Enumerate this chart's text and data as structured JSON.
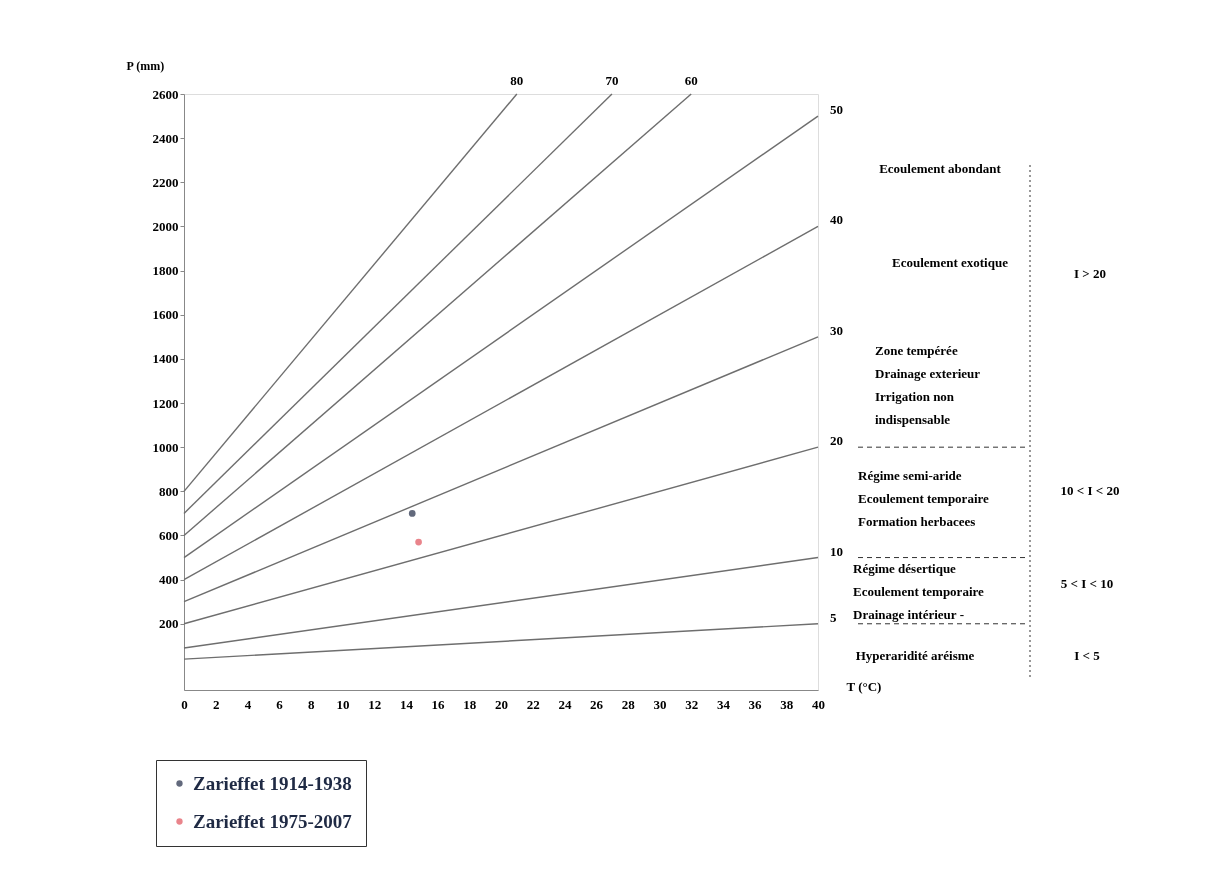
{
  "chart_data": {
    "type": "line",
    "xlabel": "T (°C)",
    "ylabel": "P (mm)",
    "xlim": [
      0,
      40
    ],
    "xticks": [
      0,
      2,
      4,
      6,
      8,
      10,
      12,
      14,
      16,
      18,
      20,
      22,
      24,
      26,
      28,
      30,
      32,
      34,
      36,
      38,
      40
    ],
    "ylim": [
      -100,
      2600
    ],
    "yticks": [
      200,
      400,
      600,
      800,
      1000,
      1200,
      1400,
      1600,
      1800,
      2000,
      2200,
      2400,
      2600
    ],
    "grid": false,
    "legend": "bottom left",
    "line_style": "solid",
    "series": [
      {
        "name": "5",
        "color": "#6e6e6e",
        "x": [
          0,
          40
        ],
        "values": [
          40,
          200
        ]
      },
      {
        "name": "10",
        "color": "#6e6e6e",
        "x": [
          0,
          40
        ],
        "values": [
          90,
          500
        ]
      },
      {
        "name": "20",
        "color": "#6e6e6e",
        "x": [
          0,
          40
        ],
        "values": [
          200,
          1000
        ]
      },
      {
        "name": "30",
        "color": "#6e6e6e",
        "x": [
          0,
          40
        ],
        "values": [
          300,
          1500
        ]
      },
      {
        "name": "40",
        "color": "#6e6e6e",
        "x": [
          0,
          40
        ],
        "values": [
          400,
          2000
        ]
      },
      {
        "name": "50",
        "color": "#6e6e6e",
        "x": [
          0,
          40
        ],
        "values": [
          500,
          2500
        ]
      },
      {
        "name": "60",
        "color": "#6e6e6e",
        "x": [
          0,
          32
        ],
        "values": [
          600,
          2600
        ]
      },
      {
        "name": "70",
        "color": "#6e6e6e",
        "x": [
          0,
          27
        ],
        "values": [
          700,
          2600
        ]
      },
      {
        "name": "80",
        "color": "#6e6e6e",
        "x": [
          0,
          21
        ],
        "values": [
          800,
          2600
        ]
      },
      {
        "name": "Zarieffet 1914-1938",
        "type": "scatter",
        "marker": "circle",
        "color": "#1f2a44",
        "x": [
          14.4
        ],
        "values": [
          700
        ]
      },
      {
        "name": "Zarieffet 1975-2007",
        "type": "scatter",
        "marker": "circle",
        "color": "#e0505a",
        "x": [
          14.8
        ],
        "values": [
          570
        ]
      }
    ],
    "annotations": [
      "Ecoulement abondant",
      "Ecoulement exotique",
      "Zone tempérée\nDrainage exterieur\nIrrigation non\nindispensable",
      "Régime semi-aride\nEcoulement temporaire\nFormation herbacees",
      "Régime désertique\nEcoulement temporaire\nDrainage intérieur -",
      "Hyperaridité  aréisme",
      "I > 20",
      "10 < I < 20",
      "5 < I < 10",
      "I < 5"
    ]
  }
}
